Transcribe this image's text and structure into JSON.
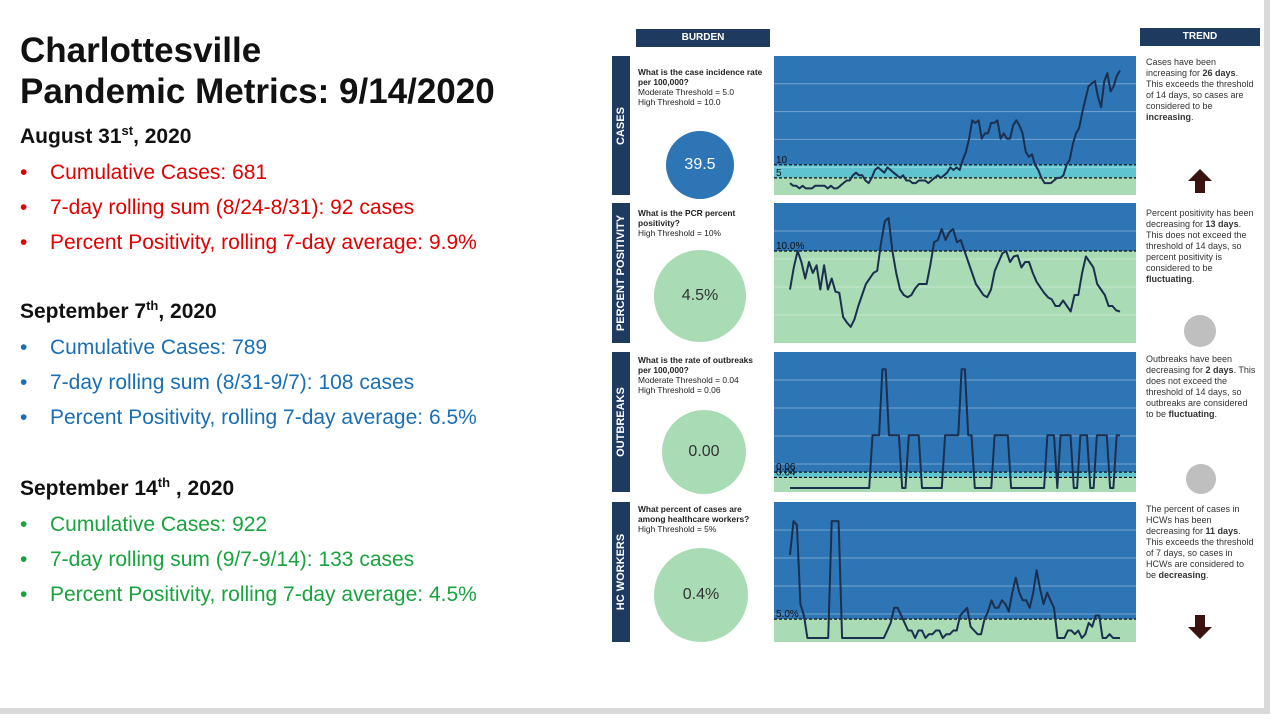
{
  "title_line1": "Charlottesville",
  "title_line2": "Pandemic Metrics: 9/14/2020",
  "sections": [
    {
      "date_main": "August 31",
      "date_sup": "st",
      "date_year": ", 2020",
      "items": [
        "Cumulative Cases: 681",
        "7-day rolling sum (8/24-8/31): 92 cases",
        "Percent Positivity, rolling 7-day average: 9.9%"
      ],
      "color": "#e00000"
    },
    {
      "date_main": "September 7",
      "date_sup": "th",
      "date_year": ", 2020",
      "items": [
        "Cumulative Cases: 789",
        "7-day rolling sum (8/31-9/7): 108 cases",
        "Percent Positivity, rolling 7-day average: 6.5%"
      ],
      "color": "#1a6fb4"
    },
    {
      "date_main": "September 14",
      "date_sup": "th",
      "date_year": " , 2020",
      "items": [
        "Cumulative Cases: 922",
        "7-day rolling sum (9/7-9/14): 133 cases",
        "Percent Positivity, rolling 7-day average: 4.5%"
      ],
      "color": "#19a33f"
    }
  ],
  "dashboard": {
    "burden_header": "BURDEN",
    "trend_header": "TREND",
    "rows": [
      {
        "side": "CASES",
        "q_bold": "What is the case incidence rate per 100,000?",
        "q_lines": [
          "Moderate Threshold = 5.0",
          "High Threshold = 10.0"
        ],
        "value": "39.5",
        "value_color": "#2e75b6",
        "value_text_color": "#ffffff",
        "trend_html": "Cases have been increasing for <b>26 days</b>. This exceeds the threshold of 14 days, so cases are considered to be <b>increasing</b>.",
        "trend_icon": "up-arrow"
      },
      {
        "side": "PERCENT POSITIVITY",
        "q_bold": "What is the PCR percent positivity?",
        "q_lines": [
          "High Threshold = 10%"
        ],
        "value": "4.5%",
        "value_color": "#a9dbb5",
        "value_text_color": "#333333",
        "trend_html": "Percent positivity has been decreasing for <b>13 days</b>. This does not exceed the threshold of 14 days, so percent positivity is considered to be <b>fluctuating</b>.",
        "trend_icon": "circle"
      },
      {
        "side": "OUTBREAKS",
        "q_bold": "What is the rate of outbreaks per 100,000?",
        "q_lines": [
          "Moderate Threshold = 0.04",
          "High Threshold = 0.06"
        ],
        "value": "0.00",
        "value_color": "#a9dbb5",
        "value_text_color": "#333333",
        "trend_html": "Outbreaks have been decreasing for <b>2 days</b>. This does not exceed the threshold of 14 days, so outbreaks are considered to be <b>fluctuating</b>.",
        "trend_icon": "circle"
      },
      {
        "side": "HC WORKERS",
        "q_bold": "What percent of cases are among healthcare workers?",
        "q_lines": [
          "High Threshold = 5%"
        ],
        "value": "0.4%",
        "value_color": "#a9dbb5",
        "value_text_color": "#333333",
        "trend_html": "The percent of cases in HCWs has been decreasing for <b>11 days</b>. This exceeds the threshold of 7 days, so cases in HCWs are considered to be <b>decreasing</b>.",
        "trend_icon": "down-arrow"
      }
    ],
    "chart_data": [
      {
        "type": "line",
        "name": "cases",
        "threshold_labels": [
          "10",
          "5"
        ],
        "thresholds": [
          10,
          5
        ],
        "ylim": [
          0,
          50
        ],
        "values": [
          3,
          2,
          2,
          1,
          2,
          1,
          1,
          1,
          2,
          2,
          2,
          2,
          1,
          2,
          1,
          1,
          2,
          3,
          4,
          4,
          6,
          7,
          6,
          6,
          4,
          3,
          5,
          8,
          9,
          8,
          7,
          9,
          8,
          7,
          6,
          5,
          6,
          4,
          4,
          3,
          3,
          4,
          4,
          4,
          3,
          4,
          5,
          6,
          5,
          6,
          7,
          9,
          8,
          9,
          8,
          12,
          15,
          20,
          27,
          26,
          27,
          20,
          22,
          22,
          26,
          26,
          27,
          20,
          22,
          20,
          20,
          25,
          27,
          25,
          22,
          15,
          13,
          14,
          10,
          8,
          5,
          3,
          3,
          3,
          4,
          5,
          5,
          6,
          10,
          12,
          18,
          22,
          24,
          30,
          35,
          40,
          41,
          42,
          36,
          32,
          42,
          45,
          38,
          40,
          44,
          46
        ]
      },
      {
        "type": "line",
        "name": "percent-positivity",
        "threshold_labels": [
          "10.0%"
        ],
        "thresholds": [
          10
        ],
        "ylim": [
          2,
          14
        ],
        "values": [
          6.5,
          8.5,
          10,
          9,
          7.5,
          9,
          8,
          8.7,
          6.5,
          8.7,
          6.5,
          7.5,
          6.3,
          6.2,
          4,
          3.5,
          3.1,
          3.8,
          5,
          6,
          7,
          7.5,
          8,
          8.2,
          10.7,
          12.7,
          13,
          10,
          8,
          6.5,
          6,
          5.8,
          6,
          6.6,
          7,
          7,
          7,
          8.7,
          10.8,
          11,
          12,
          11,
          11.7,
          12,
          10.8,
          11,
          10,
          9,
          8,
          7,
          6.5,
          6,
          5.8,
          6.5,
          8.2,
          9,
          9.8,
          10,
          9,
          9.5,
          9.6,
          8.5,
          9,
          9,
          8,
          7.2,
          6.7,
          6.2,
          5.8,
          5.6,
          5,
          5,
          5.5,
          5,
          4.5,
          6,
          6,
          8,
          9.5,
          9,
          8.5,
          7,
          6.5,
          6,
          5,
          5,
          4.6,
          4.5
        ]
      },
      {
        "type": "line",
        "name": "outbreaks",
        "threshold_labels": [
          "0.06",
          "0.04"
        ],
        "thresholds": [
          0.06,
          0.04
        ],
        "ylim": [
          0,
          0.5
        ],
        "values": [
          0,
          0,
          0,
          0,
          0,
          0,
          0,
          0,
          0,
          0,
          0,
          0,
          0,
          0,
          0,
          0,
          0,
          0,
          0,
          0,
          0,
          0,
          0,
          0,
          0,
          0.2,
          0.2,
          0.2,
          0.45,
          0.45,
          0.2,
          0.2,
          0.2,
          0.2,
          0,
          0,
          0.2,
          0.2,
          0.2,
          0.2,
          0,
          0,
          0,
          0,
          0,
          0,
          0,
          0.2,
          0.2,
          0.2,
          0.2,
          0.2,
          0.45,
          0.45,
          0.2,
          0.2,
          0,
          0,
          0,
          0,
          0,
          0,
          0.2,
          0.2,
          0.2,
          0.2,
          0.2,
          0,
          0,
          0,
          0,
          0,
          0,
          0,
          0,
          0,
          0,
          0,
          0.2,
          0.2,
          0.2,
          0,
          0.2,
          0.2,
          0.2,
          0.2,
          0,
          0,
          0.2,
          0.2,
          0.2,
          0,
          0,
          0.2,
          0.2,
          0.2,
          0.2,
          0,
          0,
          0.2,
          0.2
        ]
      },
      {
        "type": "line",
        "name": "hc-workers",
        "threshold_labels": [
          "5.0%"
        ],
        "thresholds": [
          5
        ],
        "ylim": [
          0,
          35
        ],
        "values": [
          22,
          31,
          30,
          9,
          6,
          0,
          0,
          0,
          0,
          0,
          0,
          0,
          31,
          31,
          31,
          0,
          0,
          0,
          0,
          0,
          0,
          0,
          0,
          0,
          0,
          0,
          0,
          0,
          2,
          4,
          8,
          8,
          6,
          4,
          2,
          2,
          0,
          2,
          2,
          0,
          1,
          1,
          2,
          2,
          0,
          1,
          1,
          2,
          2,
          6,
          7,
          8,
          3,
          2,
          1,
          1,
          5,
          7,
          10,
          8,
          8,
          10,
          9,
          7,
          12,
          16,
          12,
          10,
          10,
          8,
          12,
          18,
          13,
          9,
          12,
          10,
          8,
          0,
          0,
          0,
          2,
          2,
          1,
          2,
          0,
          1,
          4,
          3,
          6,
          6,
          0,
          0,
          1,
          0,
          0,
          0
        ]
      }
    ]
  }
}
